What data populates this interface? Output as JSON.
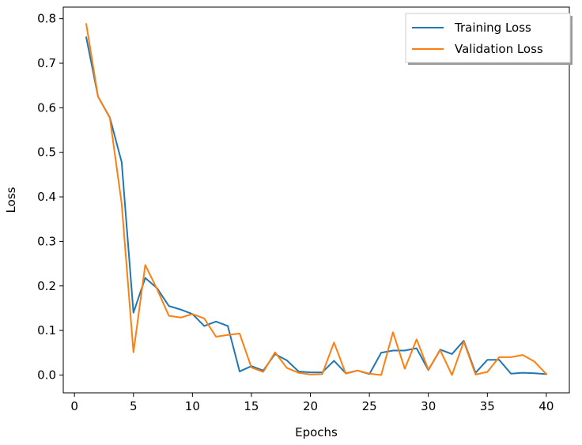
{
  "chart_data": {
    "type": "line",
    "xlabel": "Epochs",
    "ylabel": "Loss",
    "xlim": [
      -0.95,
      41.95
    ],
    "ylim": [
      -0.04,
      0.826
    ],
    "xticks": [
      0,
      5,
      10,
      15,
      20,
      25,
      30,
      35,
      40
    ],
    "yticks": [
      0.0,
      0.1,
      0.2,
      0.3,
      0.4,
      0.5,
      0.6,
      0.7,
      0.8
    ],
    "x": [
      1,
      2,
      3,
      4,
      5,
      6,
      7,
      8,
      9,
      10,
      11,
      12,
      13,
      14,
      15,
      16,
      17,
      18,
      19,
      20,
      21,
      22,
      23,
      24,
      25,
      26,
      27,
      28,
      29,
      30,
      31,
      32,
      33,
      34,
      35,
      36,
      37,
      38,
      39,
      40
    ],
    "series": [
      {
        "name": "Training Loss",
        "color": "#1f77b4",
        "values": [
          0.758,
          0.625,
          0.578,
          0.478,
          0.14,
          0.218,
          0.195,
          0.155,
          0.147,
          0.137,
          0.11,
          0.12,
          0.11,
          0.008,
          0.02,
          0.01,
          0.047,
          0.033,
          0.008,
          0.006,
          0.006,
          0.032,
          0.004,
          0.01,
          0.002,
          0.05,
          0.055,
          0.055,
          0.06,
          0.011,
          0.057,
          0.047,
          0.077,
          0.005,
          0.034,
          0.034,
          0.003,
          0.005,
          0.004,
          0.002
        ]
      },
      {
        "name": "Validation Loss",
        "color": "#ff7f0e",
        "values": [
          0.788,
          0.625,
          0.577,
          0.385,
          0.051,
          0.247,
          0.193,
          0.133,
          0.129,
          0.137,
          0.127,
          0.086,
          0.09,
          0.093,
          0.017,
          0.007,
          0.051,
          0.016,
          0.005,
          0.001,
          0.002,
          0.073,
          0.003,
          0.01,
          0.003,
          0.0,
          0.096,
          0.014,
          0.08,
          0.012,
          0.056,
          0.0,
          0.075,
          0.001,
          0.007,
          0.04,
          0.04,
          0.045,
          0.03,
          0.002
        ]
      }
    ],
    "legend": "top-right",
    "grid": false
  }
}
